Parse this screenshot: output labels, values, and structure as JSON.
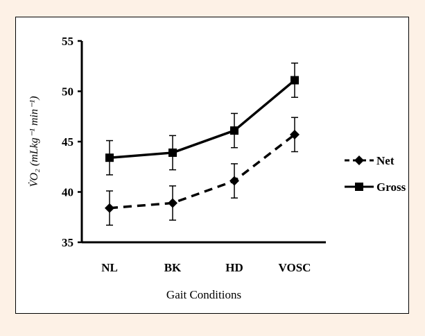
{
  "chart_data": {
    "type": "line",
    "categories": [
      "NL",
      "BK",
      "HD",
      "VOSC"
    ],
    "xlabel": "Gait Conditions",
    "ylabel": "V̇O₂ (mLkg⁻¹ min⁻¹)",
    "ylim": [
      35,
      55
    ],
    "yticks": [
      35,
      40,
      45,
      50,
      55
    ],
    "grid": false,
    "legend_position": "right",
    "series": [
      {
        "name": "Net",
        "marker": "diamond",
        "line_style": "dashed",
        "values": [
          38.4,
          38.9,
          41.1,
          45.7
        ],
        "error": [
          1.7,
          1.7,
          1.7,
          1.7
        ]
      },
      {
        "name": "Gross",
        "marker": "square",
        "line_style": "solid",
        "values": [
          43.4,
          43.9,
          46.1,
          51.1
        ],
        "error": [
          1.7,
          1.7,
          1.7,
          1.7
        ]
      }
    ],
    "colors": {
      "line": "#000000",
      "frame_bg": "#fdf1e6",
      "plot_bg": "#ffffff"
    }
  }
}
